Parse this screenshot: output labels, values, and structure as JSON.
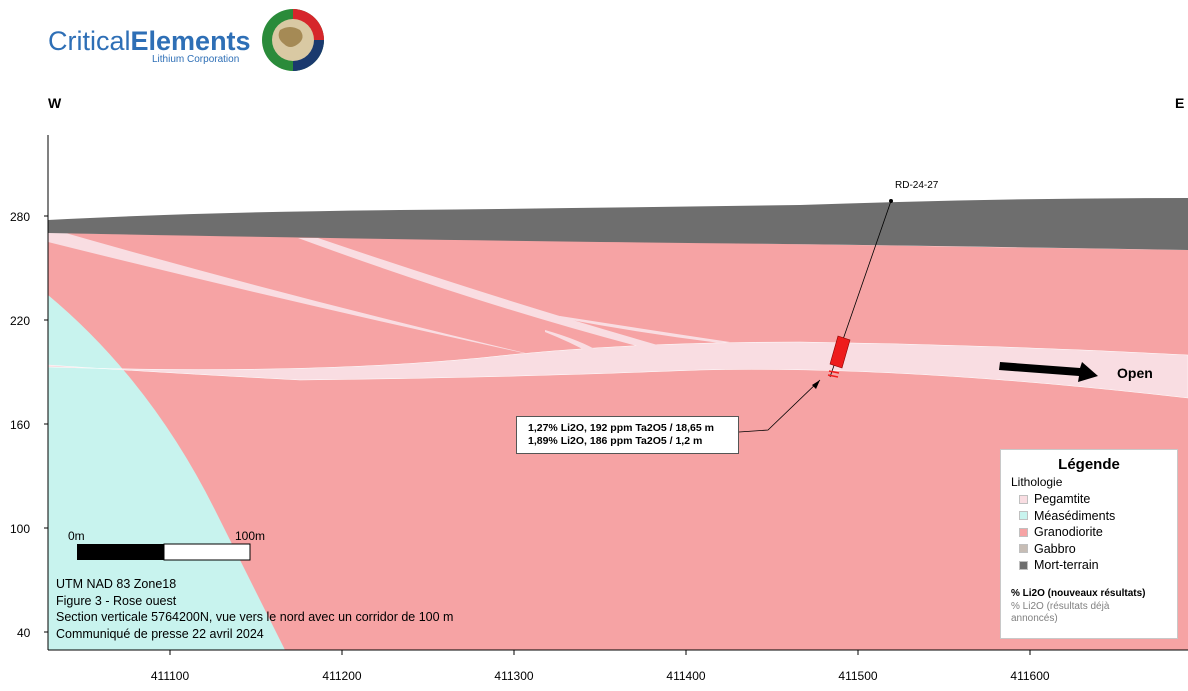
{
  "company": {
    "name_part1": "Critical",
    "name_part2": "Elements",
    "subtitle": "Lithium Corporation"
  },
  "directions": {
    "west": "W",
    "east": "E"
  },
  "axes": {
    "y_ticks": [
      "280",
      "220",
      "160",
      "100",
      "40"
    ],
    "x_ticks": [
      "411100",
      "411200",
      "411300",
      "411400",
      "411500",
      "411600"
    ]
  },
  "drillhole": {
    "name": "RD-24-27",
    "assays": [
      "1,27% Li2O, 192 ppm Ta2O5 / 18,65 m",
      "1,89% Li2O, 186 ppm Ta2O5 / 1,2 m"
    ]
  },
  "open_label": "Open",
  "scale_bar": {
    "start": "0m",
    "end": "100m"
  },
  "notes": [
    "UTM NAD 83 Zone18",
    "Figure 3 - Rose ouest",
    "Section verticale 5764200N, vue vers le nord avec un corridor de 100 m",
    "Communiqué de presse 22 avril 2024"
  ],
  "legend": {
    "title": "Légende",
    "subtitle": "Lithologie",
    "items": [
      {
        "label": "Pegamtite",
        "color": "#f9dde2"
      },
      {
        "label": "Méasédiments",
        "color": "#c8f3ee"
      },
      {
        "label": "Granodiorite",
        "color": "#f6a3a4"
      },
      {
        "label": "Gabbro",
        "color": "#c7bdb5"
      },
      {
        "label": "Mort-terrain",
        "color": "#6e6e6e"
      }
    ],
    "li_new": "% Li2O (nouveaux résultats)",
    "li_old": "% Li2O (résultats déjà annoncés)"
  },
  "colors": {
    "granodiorite": "#f6a3a4",
    "pegmatite": "#f9dde2",
    "metasediments": "#c8f3ee",
    "overburden": "#6e6e6e",
    "intercept": "#ee1c1c",
    "brand_blue": "#2e6fb6"
  }
}
